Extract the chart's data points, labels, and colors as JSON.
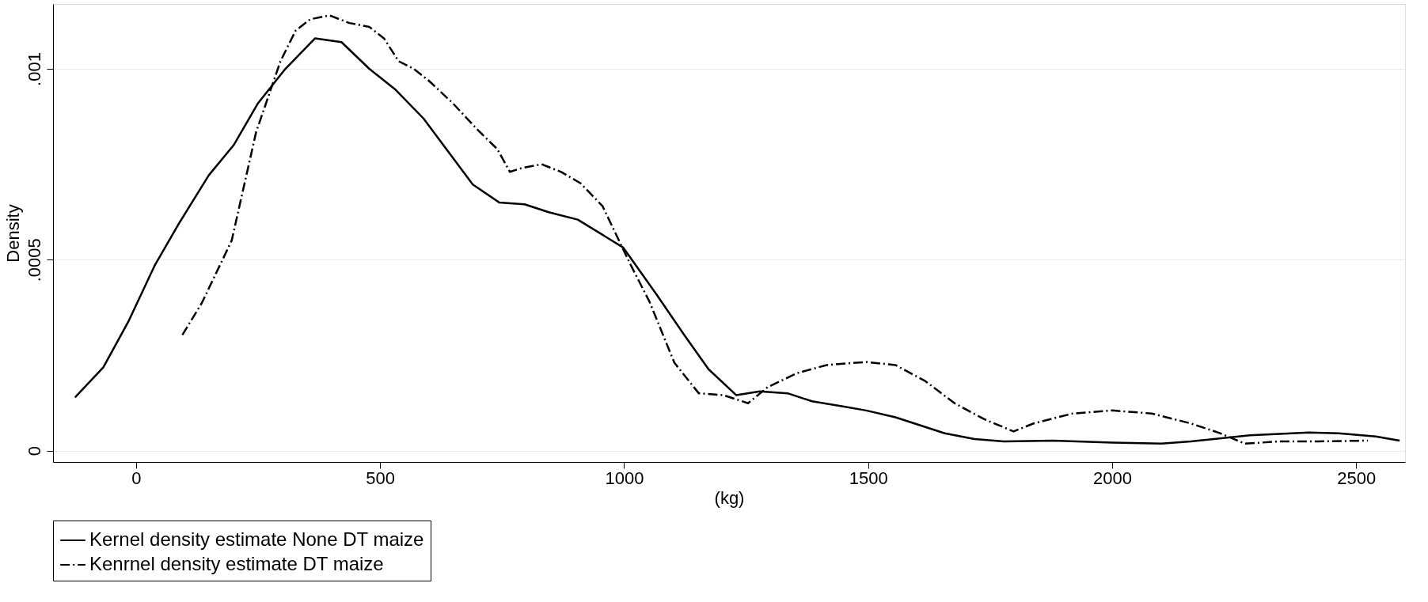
{
  "chart_data": {
    "type": "line",
    "xlabel": "(kg)",
    "ylabel": "Density",
    "xlim": [
      -170,
      2600
    ],
    "xticks": [
      0,
      500,
      1000,
      1500,
      2000,
      2500
    ],
    "ylim": [
      -3e-05,
      0.00117
    ],
    "yticks": [
      {
        "value": 0,
        "label": "0"
      },
      {
        "value": 0.0005,
        "label": ".0005"
      },
      {
        "value": 0.001,
        "label": ".001"
      }
    ],
    "grid": "y",
    "legend": "bottom",
    "marker": "none",
    "series": [
      {
        "name": "Kernel density estimate None DT maize",
        "color": "#000000",
        "line_style": "solid",
        "x": [
          -125,
          -67,
          -16,
          38,
          89,
          149,
          200,
          250,
          306,
          367,
          421,
          478,
          532,
          589,
          690,
          744,
          796,
          847,
          905,
          998,
          1067,
          1123,
          1173,
          1230,
          1278,
          1335,
          1385,
          1446,
          1496,
          1556,
          1657,
          1718,
          1778,
          1879,
          2000,
          2101,
          2161,
          2282,
          2403,
          2464,
          2540,
          2589
        ],
        "values": [
          0.000139,
          0.000218,
          0.000337,
          0.000484,
          0.000597,
          0.000721,
          0.0008,
          0.00091,
          0.001,
          0.00108,
          0.00107,
          0.001,
          0.000945,
          0.00087,
          0.000697,
          0.00065,
          0.000645,
          0.000624,
          0.000605,
          0.000532,
          0.000408,
          0.000303,
          0.000213,
          0.000145,
          0.000155,
          0.00015,
          0.000129,
          0.000116,
          0.000105,
          8.7e-05,
          4.5e-05,
          3e-05,
          2.4e-05,
          2.6e-05,
          2.1e-05,
          1.8e-05,
          2.4e-05,
          4e-05,
          4.7e-05,
          4.5e-05,
          3.7e-05,
          2.6e-05
        ]
      },
      {
        "name": "Kenrnel density estimate DT maize",
        "color": "#000000",
        "line_style": "dashed",
        "x": [
          95,
          135,
          196,
          246,
          296,
          327,
          357,
          397,
          437,
          478,
          508,
          538,
          569,
          599,
          649,
          700,
          740,
          766,
          790,
          831,
          871,
          911,
          956,
          1012,
          1052,
          1103,
          1153,
          1204,
          1254,
          1294,
          1355,
          1415,
          1496,
          1556,
          1617,
          1677,
          1738,
          1798,
          1839,
          1919,
          2000,
          2081,
          2161,
          2222,
          2272,
          2343,
          2423,
          2524
        ],
        "values": [
          0.000303,
          0.000387,
          0.00055,
          0.000834,
          0.00102,
          0.0011,
          0.00113,
          0.00114,
          0.00112,
          0.00111,
          0.00108,
          0.00102,
          0.001,
          0.00097,
          0.00091,
          0.00084,
          0.00079,
          0.00073,
          0.00074,
          0.00075,
          0.00073,
          0.0007,
          0.00064,
          0.00049,
          0.00039,
          0.00023,
          0.00015,
          0.000145,
          0.000124,
          0.000166,
          0.000203,
          0.000224,
          0.000232,
          0.000224,
          0.000182,
          0.000124,
          8.2e-05,
          5e-05,
          7.1e-05,
          9.7e-05,
          0.000105,
          9.7e-05,
          7.1e-05,
          4.5e-05,
          1.8e-05,
          2.4e-05,
          2.4e-05,
          2.6e-05
        ]
      }
    ]
  }
}
